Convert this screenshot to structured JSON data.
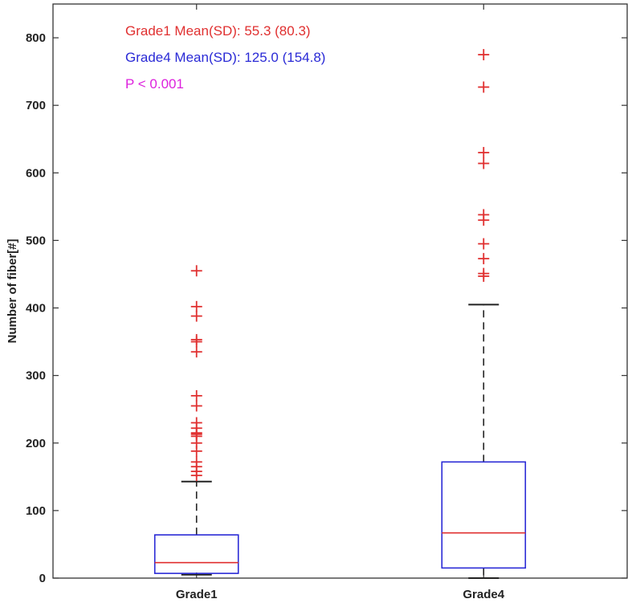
{
  "chart_data": {
    "type": "boxplot",
    "title": "",
    "xlabel": "",
    "ylabel": "Number of fiber[#]",
    "ylim": [
      0,
      850
    ],
    "yticks": [
      0,
      100,
      200,
      300,
      400,
      500,
      600,
      700,
      800
    ],
    "ytick_labels": [
      "0",
      "100",
      "200",
      "300",
      "400",
      "500",
      "600",
      "700",
      "800"
    ],
    "grid": false,
    "categories": [
      "Grade1",
      "Grade4"
    ],
    "boxes": [
      {
        "category": "Grade1",
        "whisker_low": 5,
        "q1": 7,
        "median": 23,
        "q3": 64,
        "whisker_high": 143,
        "outliers": [
          152,
          158,
          165,
          172,
          188,
          200,
          210,
          213,
          215,
          222,
          230,
          255,
          270,
          335,
          350,
          353,
          388,
          402,
          455
        ]
      },
      {
        "category": "Grade4",
        "whisker_low": 0,
        "q1": 15,
        "median": 67,
        "q3": 172,
        "whisker_high": 405,
        "outliers": [
          447,
          451,
          473,
          495,
          530,
          538,
          614,
          630,
          727,
          775
        ]
      }
    ],
    "annotations": [
      {
        "text": "Grade1 Mean(SD): 55.3 (80.3)",
        "color": "#e03030"
      },
      {
        "text": "Grade4 Mean(SD): 125.0 (154.8)",
        "color": "#2a2ad6"
      },
      {
        "text": "P < 0.001",
        "color": "#dd22dd"
      }
    ],
    "colors": {
      "box": "#2a2ad6",
      "median": "#e03030",
      "outlier": "#e03030",
      "whisker": "#222222",
      "axis": "#333333"
    }
  }
}
